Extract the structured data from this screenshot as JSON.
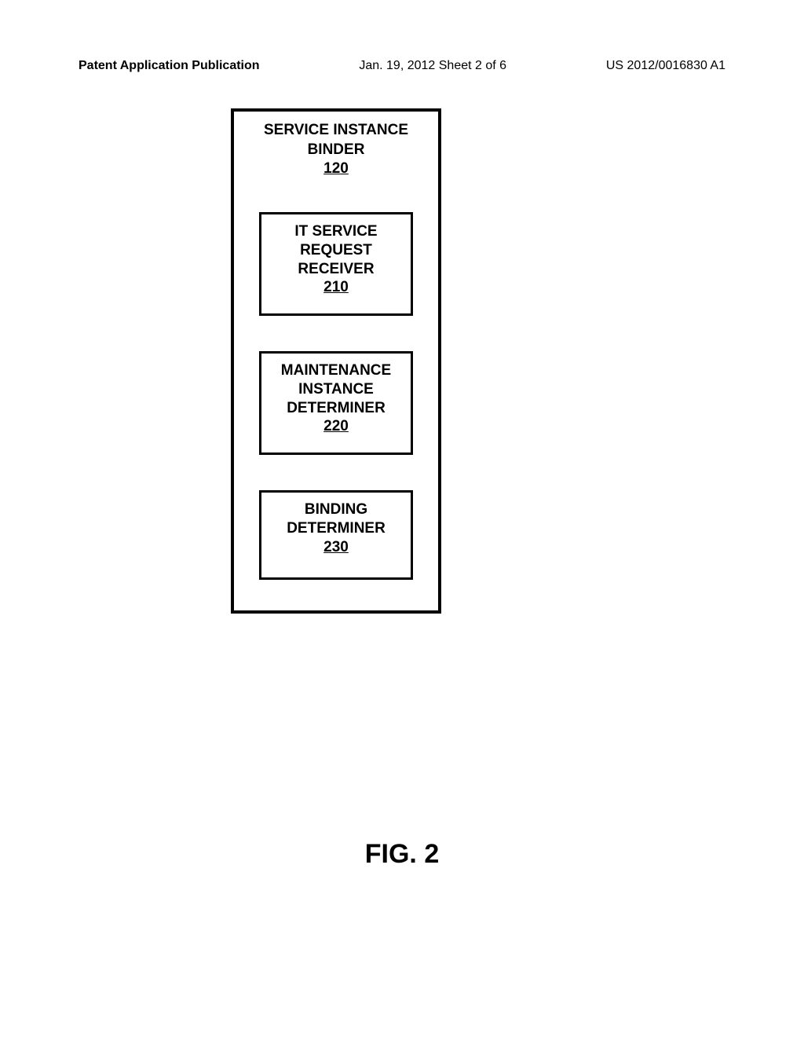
{
  "header": {
    "left": "Patent Application Publication",
    "center": "Jan. 19, 2012  Sheet 2 of 6",
    "right": "US 2012/0016830 A1"
  },
  "diagram": {
    "outer_box": {
      "title_line1": "SERVICE INSTANCE",
      "title_line2": "BINDER",
      "ref": "120",
      "border_color": "#000000",
      "border_width": 4,
      "background_color": "#ffffff"
    },
    "inner_boxes": [
      {
        "line1": "IT SERVICE",
        "line2": "REQUEST",
        "line3": "RECEIVER",
        "ref": "210",
        "border_color": "#000000",
        "border_width": 3
      },
      {
        "line1": "MAINTENANCE",
        "line2": "INSTANCE",
        "line3": "DETERMINER",
        "ref": "220",
        "border_color": "#000000",
        "border_width": 3
      },
      {
        "line1": "BINDING",
        "line2": "DETERMINER",
        "line3": "",
        "ref": "230",
        "border_color": "#000000",
        "border_width": 3
      }
    ]
  },
  "figure_label": "FIG. 2",
  "styling": {
    "page_background": "#ffffff",
    "text_color": "#000000",
    "title_fontsize": 19,
    "label_fontsize": 34,
    "header_fontsize": 16,
    "font_family": "Arial"
  }
}
